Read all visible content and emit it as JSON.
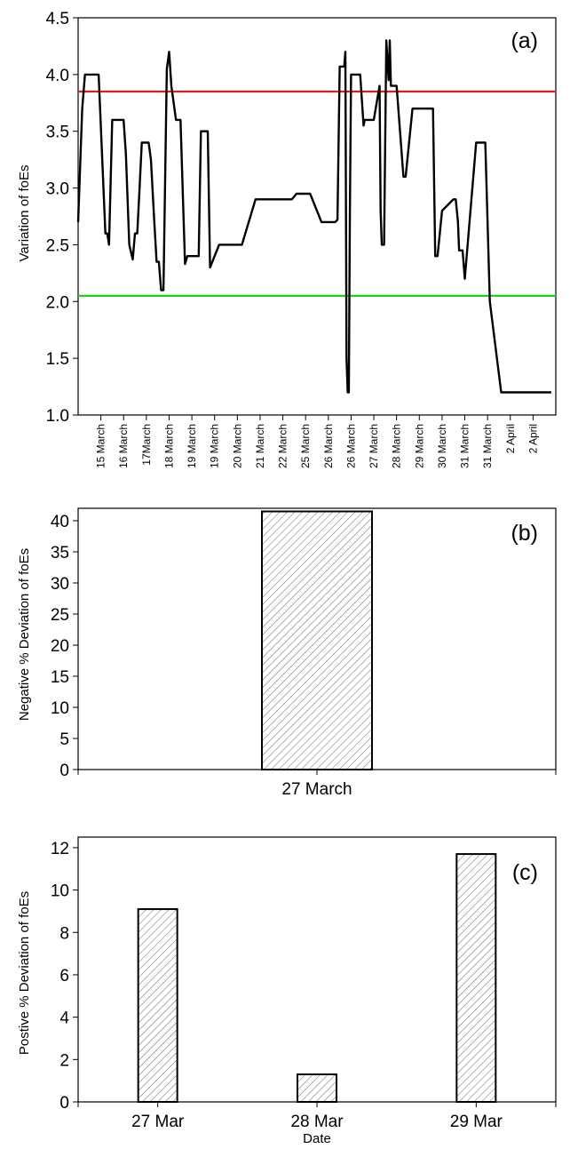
{
  "chart_data": [
    {
      "panel_label": "(a)",
      "type": "line",
      "ylabel": "Variation of foEs",
      "ylim": [
        1.0,
        4.5
      ],
      "yticks": [
        "1.0",
        "1.5",
        "2.0",
        "2.5",
        "3.0",
        "3.5",
        "4.0",
        "4.5"
      ],
      "xlim": [
        0,
        21
      ],
      "x_tick_labels": [
        "15 March",
        "16 March",
        "17March",
        "18 March",
        "19 March",
        "19 March",
        "20 March",
        "21 March",
        "22 March",
        "25 March",
        "26 March",
        "26 March",
        "27 March",
        "28 March",
        "29 March",
        "30 March",
        "31 March",
        "31 March",
        "2 April",
        "2 April"
      ],
      "reference_lines": [
        {
          "value": 3.85,
          "color": "#e31a1c"
        },
        {
          "value": 2.05,
          "color": "#22cc22"
        }
      ],
      "series": [
        {
          "color": "#000000",
          "x": [
            0.0,
            0.18,
            0.3,
            0.4,
            0.9,
            1.2,
            1.28,
            1.36,
            1.5,
            1.8,
            2.0,
            2.1,
            2.25,
            2.4,
            2.5,
            2.6,
            2.7,
            2.8,
            3.0,
            3.1,
            3.2,
            3.35,
            3.45,
            3.55,
            3.65,
            3.75,
            3.9,
            4.0,
            4.1,
            4.3,
            4.5,
            4.7,
            4.8,
            5.2,
            5.3,
            5.4,
            5.6,
            5.7,
            5.8,
            6.2,
            6.4,
            6.5,
            6.8,
            7.2,
            7.8,
            8.2,
            8.6,
            8.9,
            9.4,
            9.6,
            9.8,
            10.2,
            10.7,
            10.9,
            11.3,
            11.4,
            11.5,
            11.7,
            11.75,
            11.8,
            11.85,
            11.9,
            11.95,
            12.0,
            12.4,
            12.55,
            12.6,
            12.75,
            13.0,
            13.25,
            13.3,
            13.35,
            13.45,
            13.55,
            13.65,
            13.7,
            13.75,
            13.8,
            13.85,
            14.0,
            14.3,
            14.4,
            14.7,
            14.8,
            15.6,
            15.7,
            15.8,
            16.0,
            16.5,
            16.6,
            16.7,
            16.75,
            16.9,
            17.0,
            17.5,
            17.7,
            17.8,
            17.9,
            18.1,
            18.6,
            18.7,
            18.75,
            19.05,
            19.3,
            20.0,
            20.5,
            20.8
          ],
          "y": [
            2.7,
            3.7,
            4.0,
            4.0,
            4.0,
            2.6,
            2.6,
            2.5,
            3.6,
            3.6,
            3.6,
            3.3,
            2.5,
            2.37,
            2.6,
            2.6,
            3.0,
            3.4,
            3.4,
            3.4,
            3.25,
            2.7,
            2.35,
            2.35,
            2.1,
            2.1,
            4.05,
            4.2,
            3.9,
            3.6,
            3.6,
            2.33,
            2.4,
            2.4,
            2.4,
            3.5,
            3.5,
            3.5,
            2.3,
            2.5,
            2.5,
            2.5,
            2.5,
            2.5,
            2.9,
            2.9,
            2.9,
            2.9,
            2.9,
            2.95,
            2.95,
            2.95,
            2.7,
            2.7,
            2.7,
            2.72,
            4.07,
            4.07,
            4.2,
            1.5,
            1.2,
            1.2,
            2.8,
            4.0,
            4.0,
            3.55,
            3.6,
            3.6,
            3.6,
            3.9,
            2.8,
            2.5,
            2.5,
            4.3,
            3.95,
            4.3,
            3.9,
            3.9,
            3.9,
            3.9,
            3.1,
            3.1,
            3.7,
            3.7,
            3.7,
            2.4,
            2.4,
            2.8,
            2.9,
            2.9,
            2.7,
            2.45,
            2.45,
            2.2,
            3.4,
            3.4,
            3.4,
            3.4,
            2.0,
            1.2,
            1.2,
            1.2,
            1.2,
            1.2,
            1.2,
            1.2,
            1.2
          ]
        }
      ]
    },
    {
      "panel_label": "(b)",
      "type": "bar",
      "ylabel": "Negative % Deviation of foEs",
      "ylim": [
        0,
        42
      ],
      "yticks": [
        "0",
        "5",
        "10",
        "15",
        "20",
        "25",
        "30",
        "35",
        "40"
      ],
      "categories": [
        "27 March"
      ],
      "values": [
        41.5
      ],
      "bar_fill": "hatched"
    },
    {
      "panel_label": "(c)",
      "type": "bar",
      "ylabel": "Postive % Deviation of foEs",
      "xlabel": "Date",
      "ylim": [
        0,
        12.5
      ],
      "yticks": [
        "0",
        "2",
        "4",
        "6",
        "8",
        "10",
        "12"
      ],
      "categories": [
        "27 Mar",
        "28 Mar",
        "29 Mar"
      ],
      "values": [
        9.1,
        1.3,
        11.7
      ],
      "bar_fill": "hatched"
    }
  ]
}
